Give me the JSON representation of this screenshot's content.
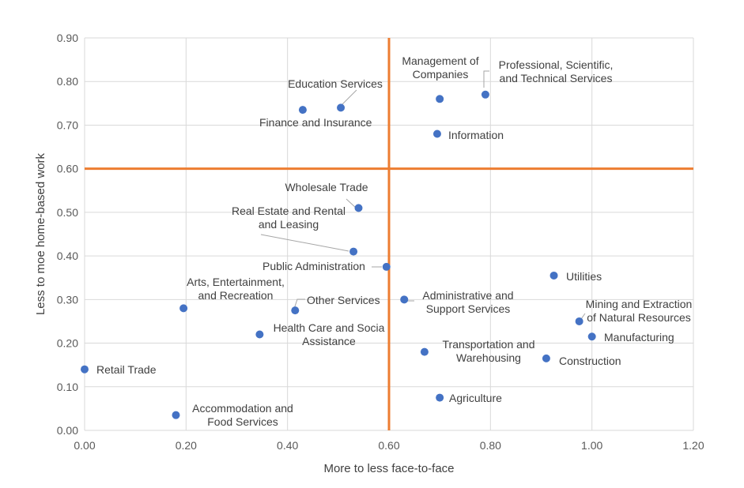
{
  "chart_data": {
    "type": "scatter",
    "xlabel": "More to less face-to-face",
    "ylabel": "Less to moe home-based work",
    "xlim": [
      0,
      1.2
    ],
    "ylim": [
      0,
      0.9
    ],
    "x_ticks": [
      "0.00",
      "0.20",
      "0.40",
      "0.60",
      "0.80",
      "1.00",
      "1.20"
    ],
    "y_ticks": [
      "0.00",
      "0.10",
      "0.20",
      "0.30",
      "0.40",
      "0.50",
      "0.60",
      "0.70",
      "0.80",
      "0.90"
    ],
    "grid": true,
    "legend": "none",
    "point_color": "#4472C4",
    "reference_line_color": "#ED7D31",
    "reference_lines": {
      "x": 0.6,
      "y": 0.6
    },
    "points": [
      {
        "label": "Retail Trade",
        "x": 0.0,
        "y": 0.14
      },
      {
        "label": "Accommodation and Food Services",
        "x": 0.18,
        "y": 0.035
      },
      {
        "label": "Arts, Entertainment, and Recreation",
        "x": 0.195,
        "y": 0.28
      },
      {
        "label": "Health Care and Social Assistance",
        "x": 0.345,
        "y": 0.22
      },
      {
        "label": "Other Services",
        "x": 0.415,
        "y": 0.275
      },
      {
        "label": "Finance and Insurance",
        "x": 0.43,
        "y": 0.735
      },
      {
        "label": "Education Services",
        "x": 0.505,
        "y": 0.74
      },
      {
        "label": "Real Estate and Rental and Leasing",
        "x": 0.53,
        "y": 0.41
      },
      {
        "label": "Wholesale Trade",
        "x": 0.54,
        "y": 0.51
      },
      {
        "label": "Public Administration",
        "x": 0.595,
        "y": 0.375
      },
      {
        "label": "Administrative and Support Services",
        "x": 0.63,
        "y": 0.3
      },
      {
        "label": "Transportation and Warehousing",
        "x": 0.67,
        "y": 0.18
      },
      {
        "label": "Information",
        "x": 0.695,
        "y": 0.68
      },
      {
        "label": "Agriculture",
        "x": 0.7,
        "y": 0.075
      },
      {
        "label": "Management of Companies",
        "x": 0.7,
        "y": 0.76
      },
      {
        "label": "Professional, Scientific, and Technical Services",
        "x": 0.79,
        "y": 0.77
      },
      {
        "label": "Construction",
        "x": 0.91,
        "y": 0.165
      },
      {
        "label": "Utilities",
        "x": 0.925,
        "y": 0.355
      },
      {
        "label": "Mining and Extraction of Natural Resources",
        "x": 0.975,
        "y": 0.25
      },
      {
        "label": "Manufacturing",
        "x": 1.0,
        "y": 0.215
      }
    ]
  },
  "point_label_lines": {
    "Retail Trade": [
      "Retail Trade"
    ],
    "Accommodation and Food Services": [
      "Accommodation and",
      "Food Services"
    ],
    "Arts, Entertainment, and Recreation": [
      "Arts, Entertainment,",
      "and Recreation"
    ],
    "Health Care and Social Assistance": [
      "Health Care and Socia",
      "Assistance"
    ],
    "Other Services": [
      "Other Services"
    ],
    "Finance and Insurance": [
      "Finance and Insurance"
    ],
    "Education Services": [
      "Education Services"
    ],
    "Real Estate and Rental and Leasing": [
      "Real Estate and Rental",
      "and Leasing"
    ],
    "Wholesale Trade": [
      "Wholesale Trade"
    ],
    "Public Administration": [
      "Public Administration"
    ],
    "Administrative and Support Services": [
      "Administrative and",
      "Support Services"
    ],
    "Transportation and Warehousing": [
      "Transportation and",
      "Warehousing"
    ],
    "Information": [
      "Information"
    ],
    "Agriculture": [
      "Agriculture"
    ],
    "Management of Companies": [
      "Management of",
      "Companies"
    ],
    "Professional, Scientific, and Technical Services": [
      "Professional, Scientific,",
      "and Technical Services"
    ],
    "Construction": [
      "Construction"
    ],
    "Utilities": [
      "Utilities"
    ],
    "Mining and Extraction of Natural Resources": [
      "Mining and Extraction",
      "of Natural Resources"
    ],
    "Manufacturing": [
      "Manufacturing"
    ]
  }
}
